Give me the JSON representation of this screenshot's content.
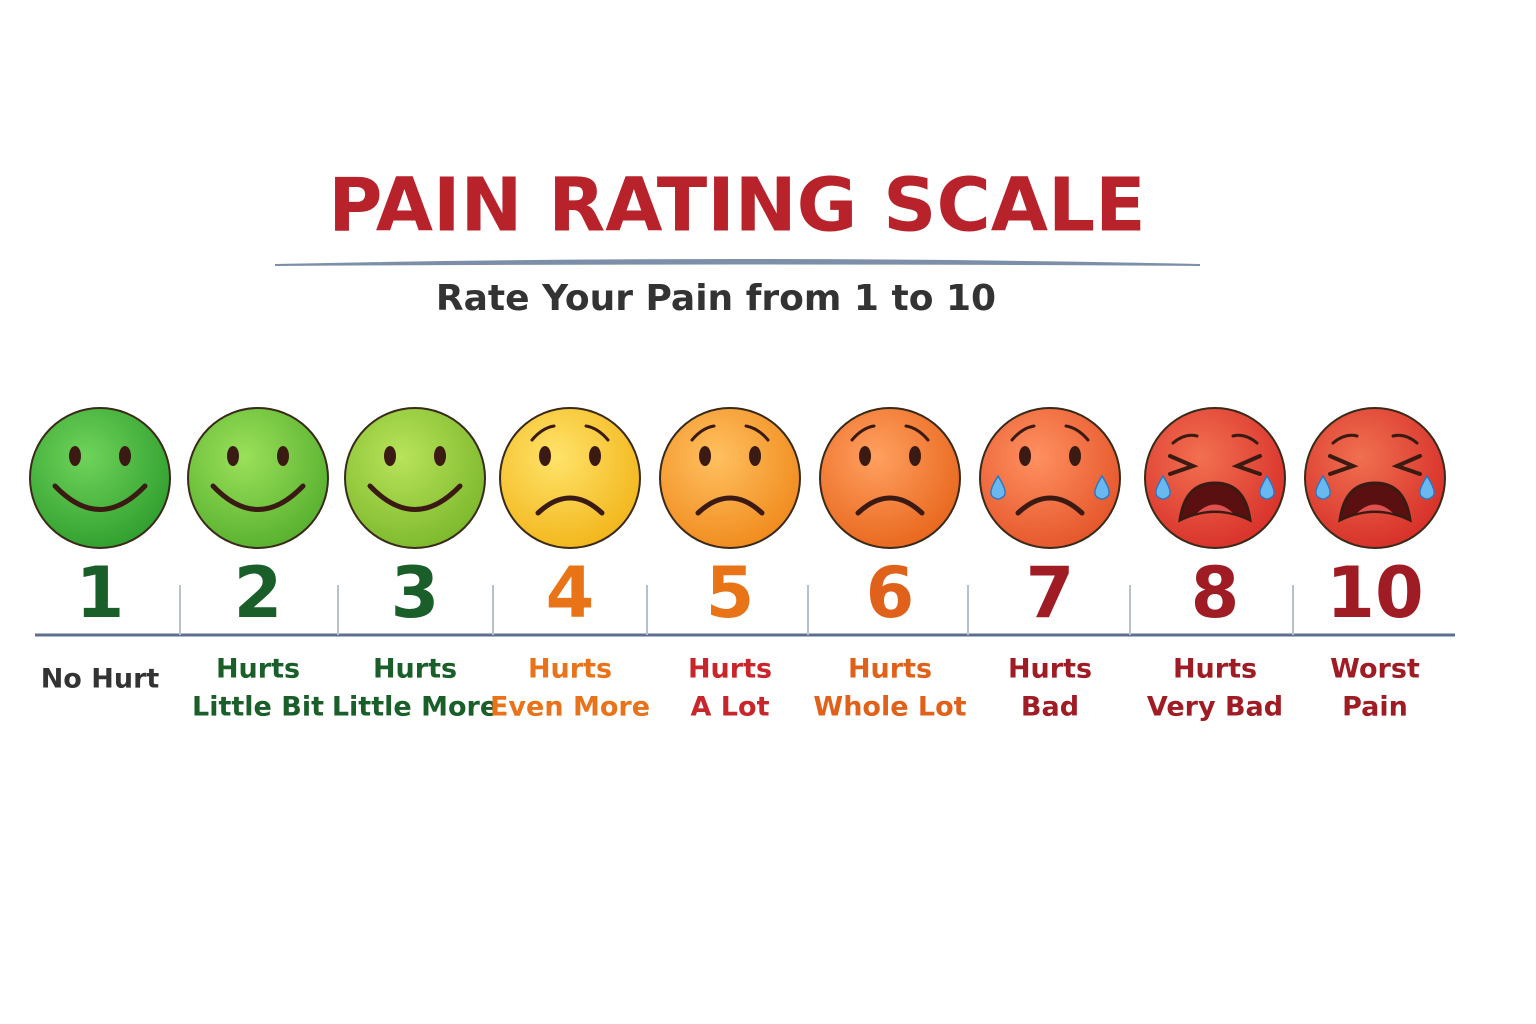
{
  "title": "PAIN RATING SCALE",
  "subtitle": "Rate Your Pain from 1 to 10",
  "items": [
    {
      "number": "1",
      "label": [
        "No Hurt"
      ]
    },
    {
      "number": "2",
      "label": [
        "Hurts",
        "Little Bit"
      ]
    },
    {
      "number": "3",
      "label": [
        "Hurts",
        "Little More"
      ]
    },
    {
      "number": "4",
      "label": [
        "Hurts",
        "Even More"
      ]
    },
    {
      "number": "5",
      "label": [
        "Hurts",
        "A Lot"
      ]
    },
    {
      "number": "6",
      "label": [
        "Hurts",
        "Whole Lot"
      ]
    },
    {
      "number": "7",
      "label": [
        "Hurts",
        "Bad"
      ]
    },
    {
      "number": "8",
      "label": [
        "Hurts",
        "Very Bad"
      ]
    },
    {
      "number": "10",
      "label": [
        "Worst",
        "Pain"
      ]
    }
  ]
}
